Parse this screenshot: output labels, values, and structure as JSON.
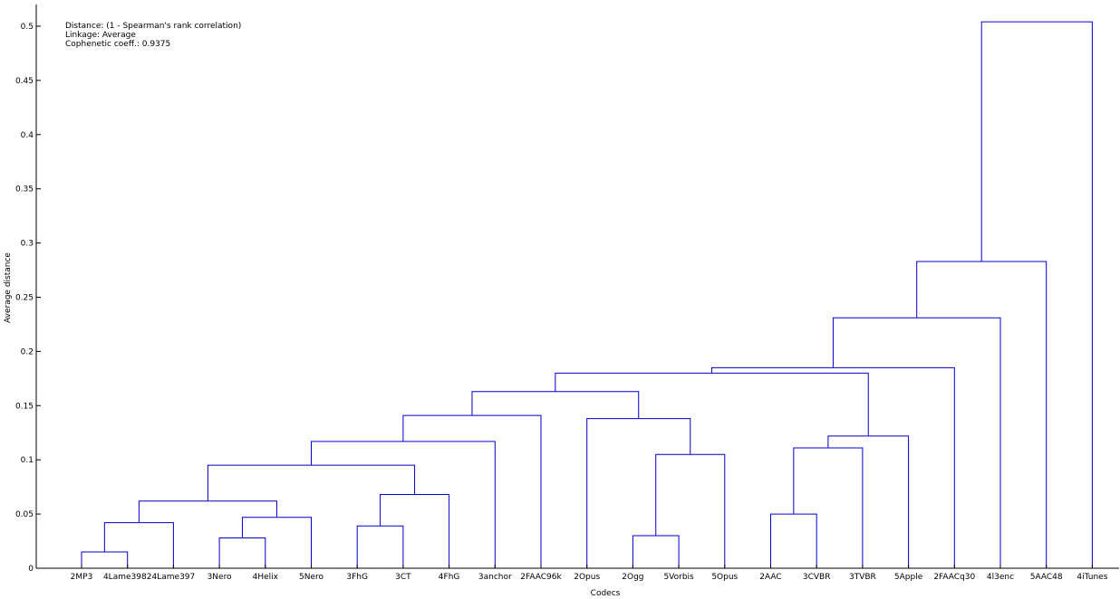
{
  "chart_data": {
    "type": "dendrogram",
    "info": [
      "Distance: (1 - Spearman's rank correlation)",
      "Linkage: Average",
      "Cophenetic coeff.: 0.9375"
    ],
    "xlabel": "Codecs",
    "ylabel": "Average distance",
    "ylim": [
      0,
      0.5
    ],
    "yticks": [
      0,
      0.05,
      0.1,
      0.15,
      0.2,
      0.25,
      0.3,
      0.35,
      0.4,
      0.45,
      0.5
    ],
    "leaves": [
      "2MP3",
      "4Lame3982",
      "4Lame397",
      "3Nero",
      "4Helix",
      "5Nero",
      "3FhG",
      "3CT",
      "4FhG",
      "3anchor",
      "2FAAC96k",
      "2Opus",
      "2Ogg",
      "5Vorbis",
      "5Opus",
      "2AAC",
      "3CVBR",
      "3TVBR",
      "5Apple",
      "2FAACq30",
      "4l3enc",
      "5AAC48",
      "4iTunes"
    ],
    "merges": [
      {
        "a": 0,
        "b": 1,
        "height": 0.015
      },
      {
        "a": 23,
        "b": 2,
        "height": 0.042
      },
      {
        "a": 3,
        "b": 4,
        "height": 0.028
      },
      {
        "a": 25,
        "b": 5,
        "height": 0.047
      },
      {
        "a": 24,
        "b": 26,
        "height": 0.062
      },
      {
        "a": 6,
        "b": 7,
        "height": 0.039
      },
      {
        "a": 28,
        "b": 8,
        "height": 0.068
      },
      {
        "a": 27,
        "b": 29,
        "height": 0.095
      },
      {
        "a": 30,
        "b": 9,
        "height": 0.117
      },
      {
        "a": 31,
        "b": 10,
        "height": 0.141
      },
      {
        "a": 12,
        "b": 13,
        "height": 0.03
      },
      {
        "a": 33,
        "b": 14,
        "height": 0.105
      },
      {
        "a": 11,
        "b": 34,
        "height": 0.138
      },
      {
        "a": 32,
        "b": 35,
        "height": 0.163
      },
      {
        "a": 15,
        "b": 16,
        "height": 0.05
      },
      {
        "a": 37,
        "b": 17,
        "height": 0.111
      },
      {
        "a": 38,
        "b": 18,
        "height": 0.122
      },
      {
        "a": 36,
        "b": 39,
        "height": 0.18
      },
      {
        "a": 40,
        "b": 19,
        "height": 0.185
      },
      {
        "a": 41,
        "b": 20,
        "height": 0.231
      },
      {
        "a": 42,
        "b": 21,
        "height": 0.283
      },
      {
        "a": 43,
        "b": 22,
        "height": 0.504
      }
    ],
    "colors": {
      "links": "#0000cc",
      "axis": "#000000",
      "background": "#ffffff"
    }
  }
}
